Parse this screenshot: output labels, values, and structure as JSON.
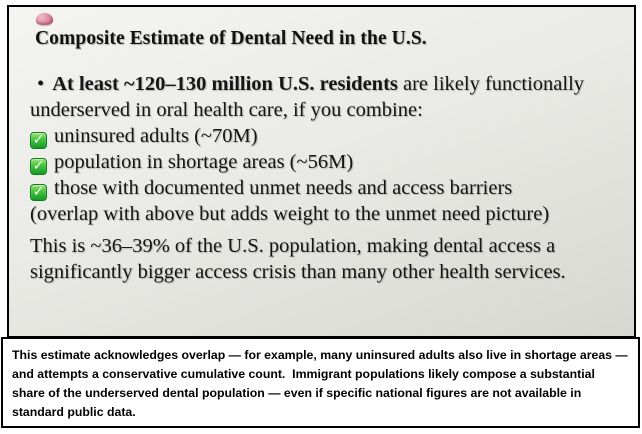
{
  "colors": {
    "slide_background_top": "#f4f4f2",
    "slide_background_bottom": "#d7d7d2",
    "border": "#000000",
    "check_green_light": "#9ae46f",
    "check_green_dark": "#179929",
    "brain_pink": "#e193aa",
    "text": "#151515",
    "notes_background": "#ffffff"
  },
  "icons": {
    "brain": "brain-icon (small pink brain glyph, top-left of slide)",
    "check": "checkmark-icon (green rounded square with white check, ✓)"
  },
  "slide": {
    "title": "Composite Estimate of Dental Need in the U.S.",
    "bullet_marker": "•",
    "lead_bold": "At least ~120–130 million U.S. residents",
    "lead_rest": " are likely functionally underserved in oral health care, if you combine:",
    "checklist": [
      "uninsured adults (~70M)",
      "population in shortage areas (~56M)",
      "those with documented unmet needs and access barriers (overlap with above but adds weight to the unmet need picture)"
    ],
    "summary": "This is ~36–39% of the U.S. population, making dental access a significantly bigger access crisis than many other health services."
  },
  "notes": {
    "text": "This estimate acknowledges overlap — for example, many uninsured adults also live in shortage areas — and attempts a conservative cumulative count.  Immigrant populations likely compose a substantial share of the underserved dental population — even if specific national figures are not available in standard public data."
  }
}
